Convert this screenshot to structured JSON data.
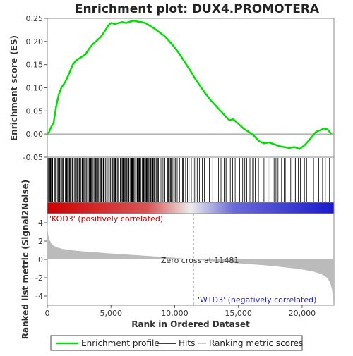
{
  "chart_data": {
    "type": "line",
    "title": "Enrichment plot: DUX4.PROMOTERA",
    "xlabel": "Rank in Ordered Dataset",
    "es_ylabel": "Enrichment score (ES)",
    "metric_ylabel": "Ranked list metric (Signal2Noise)",
    "xlim": [
      0,
      22500
    ],
    "es_ylim": [
      -0.05,
      0.25
    ],
    "metric_ylim": [
      -5,
      5
    ],
    "x_ticks": [
      0,
      5000,
      10000,
      15000,
      20000
    ],
    "x_tick_labels": [
      "0",
      "5,000",
      "10,000",
      "15,000",
      "20,000"
    ],
    "es_ticks": [
      -0.05,
      0.0,
      0.05,
      0.1,
      0.15,
      0.2,
      0.25
    ],
    "es_tick_labels": [
      "-0.05",
      "0.00",
      "0.05",
      "0.10",
      "0.15",
      "0.20",
      "0.25"
    ],
    "metric_ticks": [
      -4,
      -2,
      0,
      2,
      4
    ],
    "metric_tick_labels": [
      "-4",
      "-2",
      "0",
      "2",
      "4"
    ],
    "es_color": "#00e000",
    "annotations": {
      "positive": "'KOD3' (positively correlated)",
      "negative": "'WTD3' (negatively correlated)",
      "zero_cross": "Zero cross at 11481",
      "zero_cross_rank": 11481
    },
    "positive_color": "#cc0000",
    "negative_color": "#2222cc",
    "series": [
      {
        "name": "Enrichment profile",
        "x": [
          0,
          150,
          300,
          500,
          700,
          900,
          1100,
          1400,
          1700,
          2000,
          2300,
          2600,
          3000,
          3300,
          3600,
          3900,
          4200,
          4500,
          4800,
          5000,
          5300,
          5600,
          5900,
          6200,
          6500,
          6800,
          7100,
          7400,
          7700,
          8000,
          8400,
          8800,
          9200,
          9600,
          10000,
          10400,
          10800,
          11200,
          11600,
          12000,
          12400,
          12800,
          13200,
          13600,
          14000,
          14300,
          14600,
          15000,
          15400,
          15800,
          16200,
          16600,
          17000,
          17400,
          17800,
          18200,
          18600,
          19000,
          19400,
          19800,
          20200,
          20500,
          20800,
          21100,
          21400,
          21700,
          22000,
          22300
        ],
        "y": [
          0.0,
          0.005,
          0.015,
          0.025,
          0.06,
          0.085,
          0.1,
          0.112,
          0.13,
          0.15,
          0.16,
          0.165,
          0.172,
          0.185,
          0.195,
          0.202,
          0.21,
          0.222,
          0.235,
          0.24,
          0.238,
          0.24,
          0.242,
          0.24,
          0.243,
          0.245,
          0.243,
          0.242,
          0.24,
          0.235,
          0.228,
          0.22,
          0.212,
          0.2,
          0.187,
          0.172,
          0.155,
          0.138,
          0.12,
          0.104,
          0.088,
          0.074,
          0.062,
          0.05,
          0.038,
          0.03,
          0.032,
          0.022,
          0.012,
          0.005,
          -0.003,
          -0.015,
          -0.02,
          -0.018,
          -0.022,
          -0.026,
          -0.028,
          -0.03,
          -0.028,
          -0.032,
          -0.024,
          -0.015,
          -0.005,
          0.005,
          0.008,
          0.012,
          0.01,
          0.0
        ]
      }
    ],
    "metric": {
      "x": [
        0,
        30,
        80,
        150,
        300,
        500,
        800,
        1200,
        2000,
        3000,
        4000,
        5000,
        6000,
        7000,
        8000,
        9000,
        10000,
        11000,
        11481,
        12000,
        13000,
        14000,
        15000,
        16000,
        17000,
        18000,
        19000,
        19800,
        20500,
        21000,
        21400,
        21700,
        22000,
        22200,
        22350,
        22450
      ],
      "y": [
        4.2,
        3.2,
        2.6,
        2.2,
        1.8,
        1.5,
        1.3,
        1.15,
        0.98,
        0.85,
        0.75,
        0.65,
        0.55,
        0.46,
        0.37,
        0.28,
        0.18,
        0.06,
        0.0,
        -0.08,
        -0.2,
        -0.31,
        -0.42,
        -0.53,
        -0.64,
        -0.77,
        -0.92,
        -1.06,
        -1.22,
        -1.38,
        -1.55,
        -1.75,
        -2.05,
        -2.5,
        -3.3,
        -4.5
      ]
    },
    "legend": {
      "position": "bottom",
      "items": [
        {
          "label": "Enrichment profile",
          "color": "#00e000"
        },
        {
          "label": "Hits",
          "color": "#000000"
        },
        {
          "label": "Ranking metric scores",
          "color": "#bbbbbb"
        }
      ]
    }
  }
}
